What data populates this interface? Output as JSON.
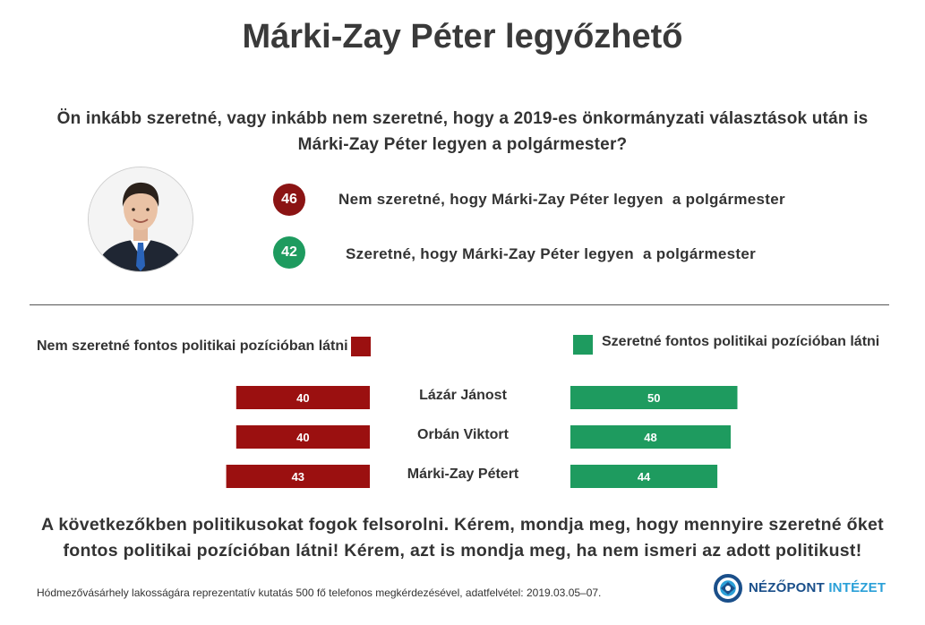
{
  "title": "Márki-Zay Péter legyőzhető",
  "question_line1": "Ön inkább szeretné, vagy inkább nem szeretné, hogy a 2019-es önkormányzati választások után is",
  "question_line2": "Márki-Zay Péter legyen a polgármester?",
  "answers": [
    {
      "value": "46",
      "text": "Nem szeretné, hogy Márki-Zay Péter legyen  a polgármester",
      "color": "#8b1414"
    },
    {
      "value": "42",
      "text": "Szeretné, hogy Márki-Zay Péter legyen  a polgármester",
      "color": "#1e9b5f"
    }
  ],
  "colors": {
    "negative": "#9b1010",
    "positive": "#1e9b5f"
  },
  "chart_data": {
    "type": "bar",
    "orientation": "horizontal-diverging",
    "legend": {
      "negative": "Nem szeretné fontos politikai pozícióban látni",
      "positive": "Szeretné fontos politikai pozícióban látni"
    },
    "categories": [
      "Lázár Jánost",
      "Orbán Viktort",
      "Márki-Zay Pétert"
    ],
    "series": [
      {
        "name": "Nem szeretné fontos politikai pozícióban látni",
        "values": [
          40,
          40,
          43
        ]
      },
      {
        "name": "Szeretné fontos politikai pozícióban látni",
        "values": [
          50,
          48,
          44
        ]
      }
    ]
  },
  "instruction_line1": "A következőkben politikusokat fogok felsorolni. Kérem, mondja meg, hogy mennyire szeretné őket",
  "instruction_line2": "fontos politikai pozícióban látni! Kérem, azt is mondja meg, ha nem ismeri az adott politikust!",
  "footnote": "Hódmezővásárhely lakosságára reprezentatív kutatás 500 fő telefonos megkérdezésével, adatfelvétel:  2019.03.05–07.",
  "logo": {
    "part1": "NÉZŐPONT",
    "part2": "INTÉZET",
    "color1": "#1a4f8a",
    "color2": "#2aa0d8",
    "icon": "nezopont-logo-icon"
  }
}
